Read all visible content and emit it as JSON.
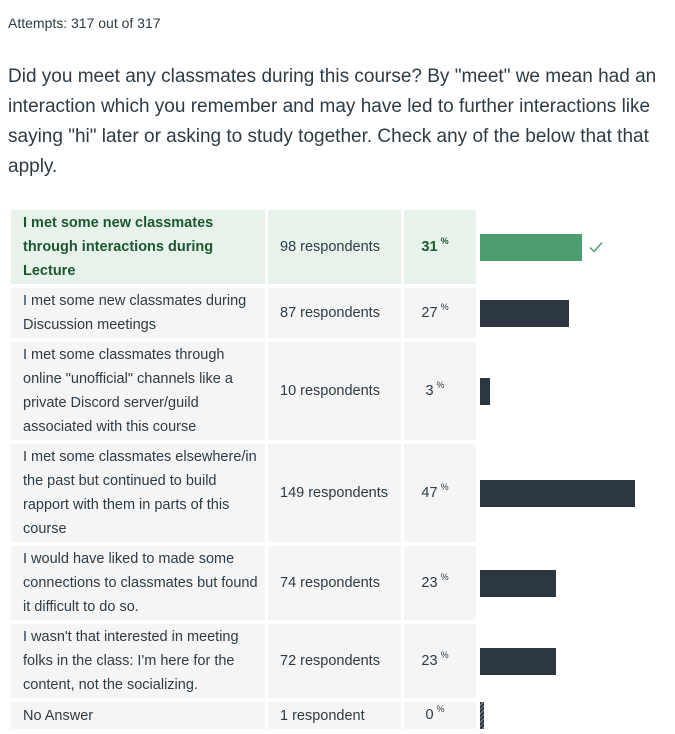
{
  "attempts": "Attempts: 317 out of 317",
  "question": "Did you meet any classmates during this course? By \"meet\" we mean had an interaction which you remember and may have led to further interactions like saying \"hi\" later or asking to study together. Check any of the below that that apply.",
  "percent_sign": "%",
  "colors": {
    "correct_bar": "#4b9d6d",
    "bar": "#2d3742",
    "correct_bg": "#e6f2ea",
    "row_bg": "#f5f5f5",
    "check": "#4b9d6d"
  },
  "answers": [
    {
      "text": "I met some new classmates through interactions during Lecture",
      "respondents": "98 respondents",
      "percent": "31",
      "fraction": 0.31,
      "correct": true
    },
    {
      "text": "I met some new classmates during Discussion meetings",
      "respondents": "87 respondents",
      "percent": "27",
      "fraction": 0.27,
      "correct": false
    },
    {
      "text": "I met some classmates through online \"unofficial\" channels like a private Discord server/guild associated with this course",
      "respondents": "10 respondents",
      "percent": "3",
      "fraction": 0.03,
      "correct": false
    },
    {
      "text": "I met some classmates elsewhere/in the past but continued to build rapport with them in parts of this course",
      "respondents": "149 respondents",
      "percent": "47",
      "fraction": 0.47,
      "correct": false
    },
    {
      "text": "I would have liked to made some connections to classmates but found it difficult to do so.",
      "respondents": "74 respondents",
      "percent": "23",
      "fraction": 0.23,
      "correct": false
    },
    {
      "text": "I wasn't that interested in meeting folks in the class: I'm here for the content, not the socializing.",
      "respondents": "72 respondents",
      "percent": "23",
      "fraction": 0.23,
      "correct": false
    },
    {
      "text": "No Answer",
      "respondents": "1 respondent",
      "percent": "0",
      "fraction": 0.0,
      "correct": false
    }
  ]
}
